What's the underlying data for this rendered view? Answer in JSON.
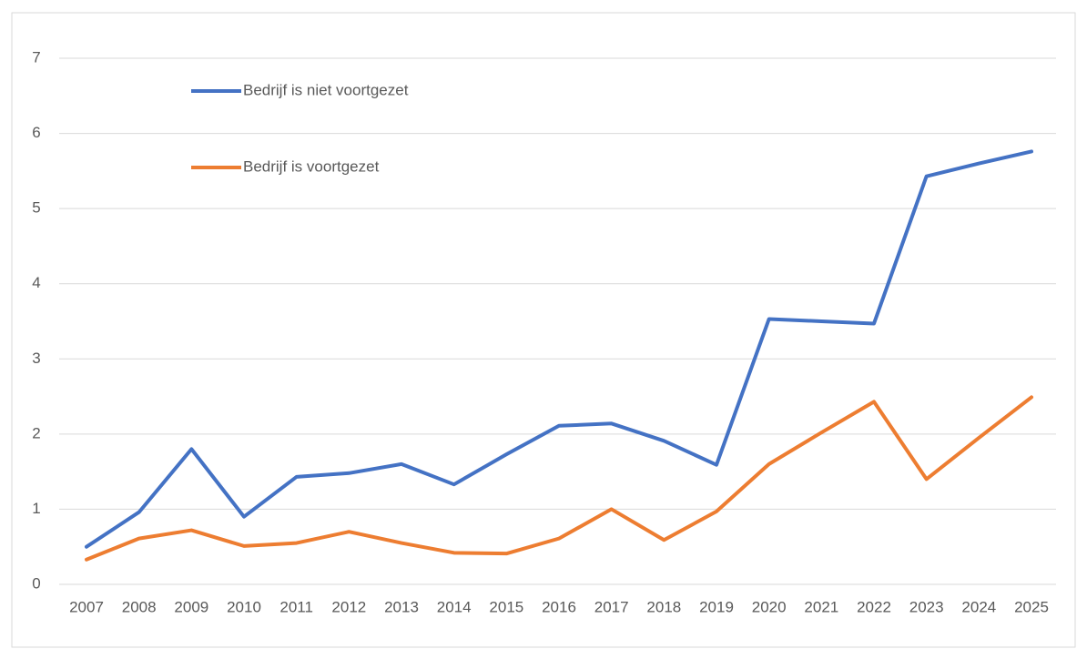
{
  "chart_data": {
    "type": "line",
    "x": [
      2007,
      2008,
      2009,
      2010,
      2011,
      2012,
      2013,
      2014,
      2015,
      2016,
      2017,
      2018,
      2019,
      2020,
      2021,
      2022,
      2023,
      2024,
      2025
    ],
    "series": [
      {
        "name": "Bedrijf is niet voortgezet",
        "color": "#4472c4",
        "values": [
          0.5,
          0.96,
          1.8,
          0.9,
          1.43,
          1.48,
          1.6,
          1.33,
          1.73,
          2.11,
          2.14,
          1.91,
          1.59,
          3.53,
          3.5,
          3.47,
          5.43,
          5.6,
          5.76
        ]
      },
      {
        "name": "Bedrijf is voortgezet",
        "color": "#ed7d31",
        "values": [
          0.33,
          0.61,
          0.72,
          0.51,
          0.55,
          0.7,
          0.55,
          0.42,
          0.41,
          0.61,
          1.0,
          0.59,
          0.97,
          1.6,
          2.02,
          2.43,
          1.4,
          1.95,
          2.49
        ]
      }
    ],
    "xlim": [
      2007,
      2025
    ],
    "ylim": [
      0,
      7
    ],
    "yticks": [
      0,
      1,
      2,
      3,
      4,
      5,
      6,
      7
    ],
    "grid": true,
    "legend": "upper left"
  }
}
